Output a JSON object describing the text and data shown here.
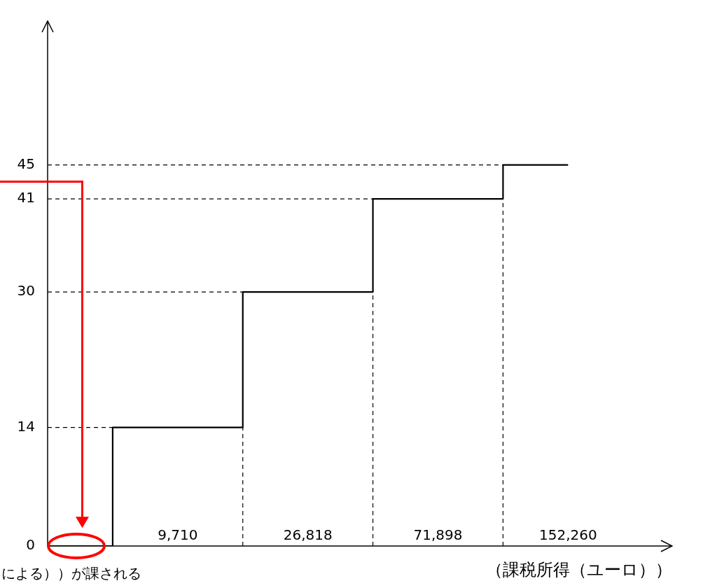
{
  "chart_data": {
    "type": "step",
    "categories": [
      null,
      "9,710",
      "26,818",
      "71,898",
      "152,260"
    ],
    "values": [
      0,
      14,
      30,
      41,
      45
    ],
    "color": "#000000",
    "xlabel": "（課税所得（ユーロ））",
    "ylim": [
      0,
      62
    ],
    "yticks": [
      0,
      14,
      30,
      41,
      45
    ],
    "ref_lines": [
      {
        "axis": "y",
        "value": 14,
        "line_style": "dashed"
      },
      {
        "axis": "y",
        "value": 30,
        "line_style": "dashed"
      },
      {
        "axis": "y",
        "value": 41,
        "line_style": "dashed"
      },
      {
        "axis": "y",
        "value": 45,
        "line_style": "dashed"
      }
    ],
    "annotations": [
      "による））が課される"
    ],
    "grid": false,
    "legend": false,
    "marker": "none",
    "line_style": "solid"
  }
}
